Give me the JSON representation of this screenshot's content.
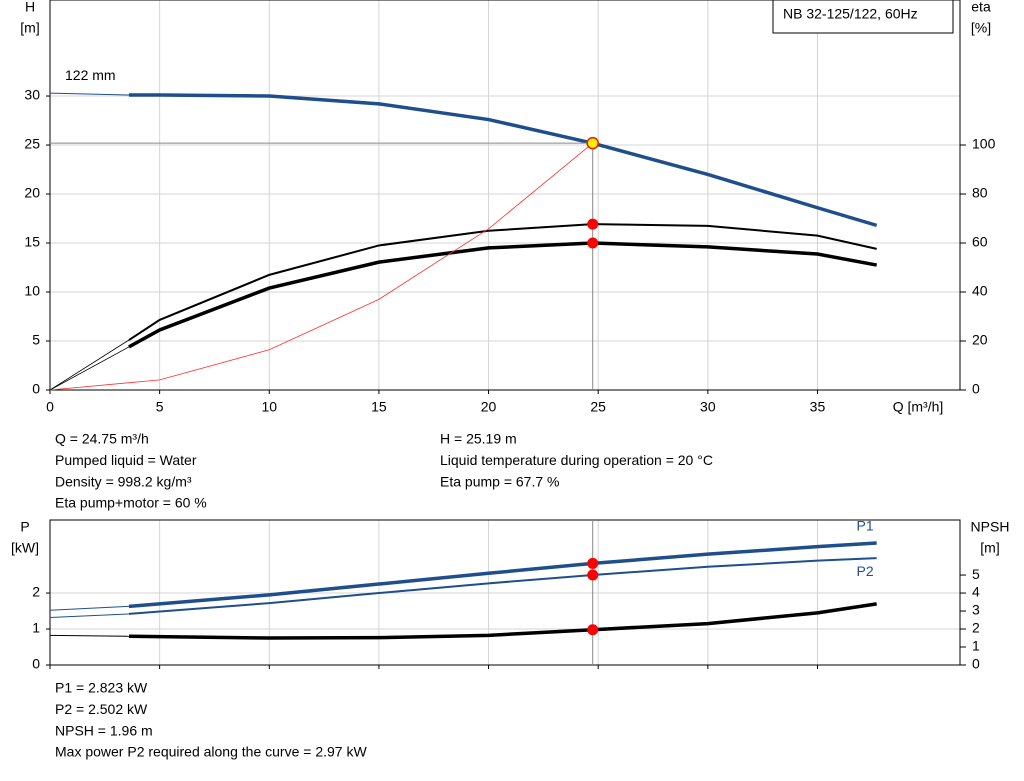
{
  "chart_data": [
    {
      "type": "line",
      "legend_box": "NB 32-125/122, 60Hz",
      "ylabel": [
        "H",
        "[m]"
      ],
      "y2label": [
        "eta",
        "[%]"
      ],
      "xlabel": "Q [m³/h]",
      "annotation": "122 mm",
      "xlim": [
        0,
        41.5
      ],
      "xticks": [
        0,
        5,
        10,
        15,
        20,
        25,
        30,
        35
      ],
      "show_xtick_labels": true,
      "ylim": [
        0,
        39.8
      ],
      "yticks": [
        0,
        5,
        10,
        15,
        20,
        25,
        30
      ],
      "y2lim": [
        0,
        159.2
      ],
      "y2ticks": [
        0,
        20,
        40,
        60,
        80,
        100
      ],
      "grid": true,
      "series": [
        {
          "color": "#1f4e8c",
          "width": 1,
          "x": [
            0,
            3.6
          ],
          "values": [
            30.3,
            30.1
          ]
        },
        {
          "color": "#1f4e8c",
          "width": 3.5,
          "x": [
            3.6,
            5,
            10,
            15,
            20,
            24.75,
            30,
            35,
            37.7
          ],
          "values": [
            30.1,
            30.1,
            30.0,
            29.2,
            27.6,
            25.19,
            22.0,
            18.6,
            16.8
          ]
        },
        {
          "color": "#000000",
          "width": 0.8,
          "axis": "y2",
          "x": [
            0,
            3.6
          ],
          "values": [
            0,
            20.4
          ]
        },
        {
          "color": "#000000",
          "width": 2,
          "axis": "y2",
          "x": [
            3.6,
            5,
            10,
            15,
            20,
            24.75,
            30,
            35,
            37.7
          ],
          "values": [
            20.4,
            28.6,
            47,
            59,
            65,
            67.7,
            67,
            63,
            57.6
          ]
        },
        {
          "color": "#000000",
          "width": 0.8,
          "axis": "y2",
          "x": [
            0,
            3.6
          ],
          "values": [
            0,
            17.6
          ]
        },
        {
          "color": "#000000",
          "width": 3.5,
          "axis": "y2",
          "x": [
            3.6,
            5,
            10,
            15,
            20,
            24.75,
            30,
            35,
            37.7
          ],
          "values": [
            17.6,
            24.5,
            41.6,
            52.2,
            58,
            60,
            58.4,
            55.5,
            51
          ]
        },
        {
          "color": "#ff3030",
          "width": 0.8,
          "x": [
            0,
            5,
            10,
            15,
            20,
            24.75
          ],
          "values": [
            0,
            1.03,
            4.11,
            9.25,
            16.45,
            25.19
          ]
        }
      ],
      "points": [
        {
          "x": 24.75,
          "y": 25.19,
          "color": "#ffee00",
          "crosshair": true
        },
        {
          "x": 24.75,
          "y": 67.7,
          "axis": "y2",
          "color": "#ff0000"
        },
        {
          "x": 24.75,
          "y": 60,
          "axis": "y2",
          "color": "#ff0000"
        }
      ],
      "notes": [
        [
          "Q = 24.75 m³/h",
          "Pumped liquid = Water",
          "Density = 998.2 kg/m³",
          "Eta pump+motor = 60 %"
        ],
        [
          "H = 25.19 m",
          "Liquid temperature during operation = 20 °C",
          "Eta pump = 67.7 %"
        ]
      ]
    },
    {
      "type": "line",
      "ylabel": [
        "P",
        "[kW]"
      ],
      "y2label": [
        "NPSH",
        "[m]"
      ],
      "xlim": [
        0,
        41.5
      ],
      "xticks": [
        0,
        5,
        10,
        15,
        20,
        25,
        30,
        35
      ],
      "show_xtick_labels": false,
      "ylim": [
        0,
        4.03
      ],
      "yticks": [
        0,
        1,
        2
      ],
      "y2lim": [
        0,
        8.06
      ],
      "y2ticks": [
        0,
        1,
        2,
        3,
        4,
        5
      ],
      "grid": true,
      "series": [
        {
          "color": "#1f4e8c",
          "width": 1,
          "x": [
            0,
            3.6
          ],
          "values": [
            1.52,
            1.63
          ]
        },
        {
          "name": "P1",
          "color": "#1f4e8c",
          "width": 3.5,
          "x": [
            3.6,
            10,
            15,
            20,
            24.75,
            30,
            35,
            37.7
          ],
          "values": [
            1.63,
            1.95,
            2.25,
            2.55,
            2.823,
            3.08,
            3.29,
            3.39
          ]
        },
        {
          "color": "#1f4e8c",
          "width": 1,
          "x": [
            0,
            3.6
          ],
          "values": [
            1.32,
            1.42
          ]
        },
        {
          "name": "P2",
          "color": "#1f4e8c",
          "width": 2,
          "x": [
            3.6,
            10,
            15,
            20,
            24.75,
            30,
            35,
            37.7
          ],
          "values": [
            1.42,
            1.72,
            2.0,
            2.27,
            2.502,
            2.73,
            2.9,
            2.97
          ]
        },
        {
          "color": "#000000",
          "width": 1,
          "axis": "y2",
          "x": [
            0,
            3.6
          ],
          "values": [
            1.65,
            1.6
          ]
        },
        {
          "color": "#000000",
          "width": 3.5,
          "axis": "y2",
          "x": [
            3.6,
            10,
            15,
            20,
            24.75,
            30,
            35,
            37.7
          ],
          "values": [
            1.6,
            1.5,
            1.52,
            1.65,
            1.96,
            2.3,
            2.9,
            3.4
          ]
        }
      ],
      "points": [
        {
          "x": 24.75,
          "y": 2.823,
          "color": "#ff0000",
          "vline": true
        },
        {
          "x": 24.75,
          "y": 2.502,
          "color": "#ff0000"
        },
        {
          "x": 24.75,
          "y": 1.96,
          "axis": "y2",
          "color": "#ff0000"
        }
      ],
      "notes": [
        [
          "P1 = 2.823 kW",
          "P2 = 2.502 kW",
          "NPSH = 1.96 m",
          "Max power P2 required along the curve = 2.97 kW"
        ]
      ]
    }
  ]
}
